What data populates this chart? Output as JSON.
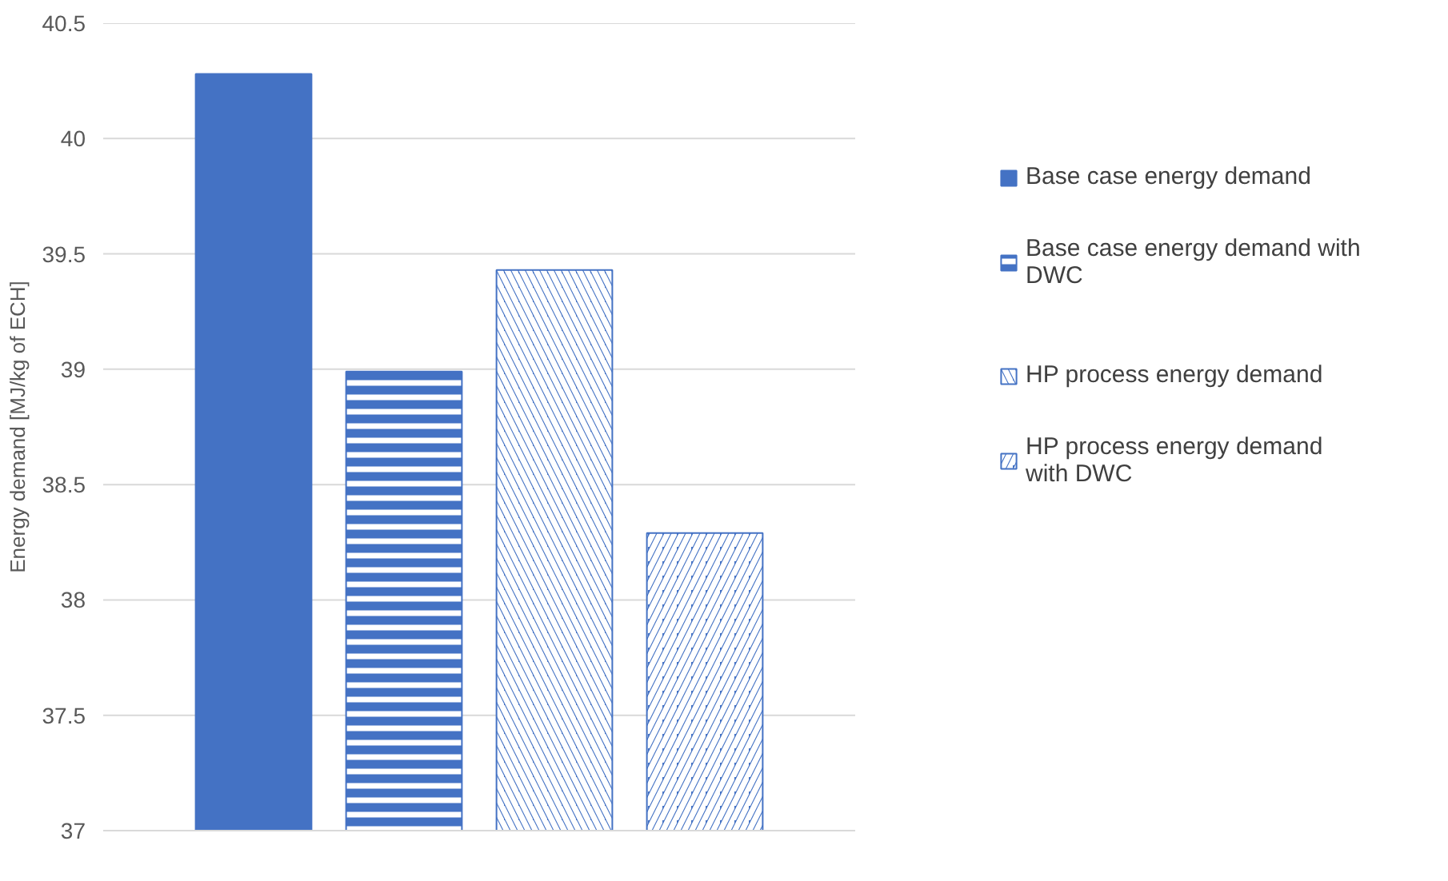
{
  "chart_data": {
    "type": "bar",
    "ylabel": "Energy demand [MJ/kg of ECH]",
    "categories": [
      null
    ],
    "series": [
      {
        "name": "Base case energy demand",
        "color": "#4472c4",
        "values": [
          40.28
        ]
      },
      {
        "name": "Base case energy demand with DWC",
        "color": "#4472c4",
        "values": [
          38.99
        ]
      },
      {
        "name": "HP process energy demand",
        "color": "#4472c4",
        "values": [
          39.43
        ]
      },
      {
        "name": "HP process energy demand with DWC",
        "color": "#4472c4",
        "values": [
          38.29
        ]
      }
    ],
    "ylim": [
      37,
      40.5
    ],
    "yticks": [
      37,
      37.5,
      38,
      38.5,
      39,
      39.5,
      40,
      40.5
    ],
    "grid": "y",
    "legend": "right"
  }
}
